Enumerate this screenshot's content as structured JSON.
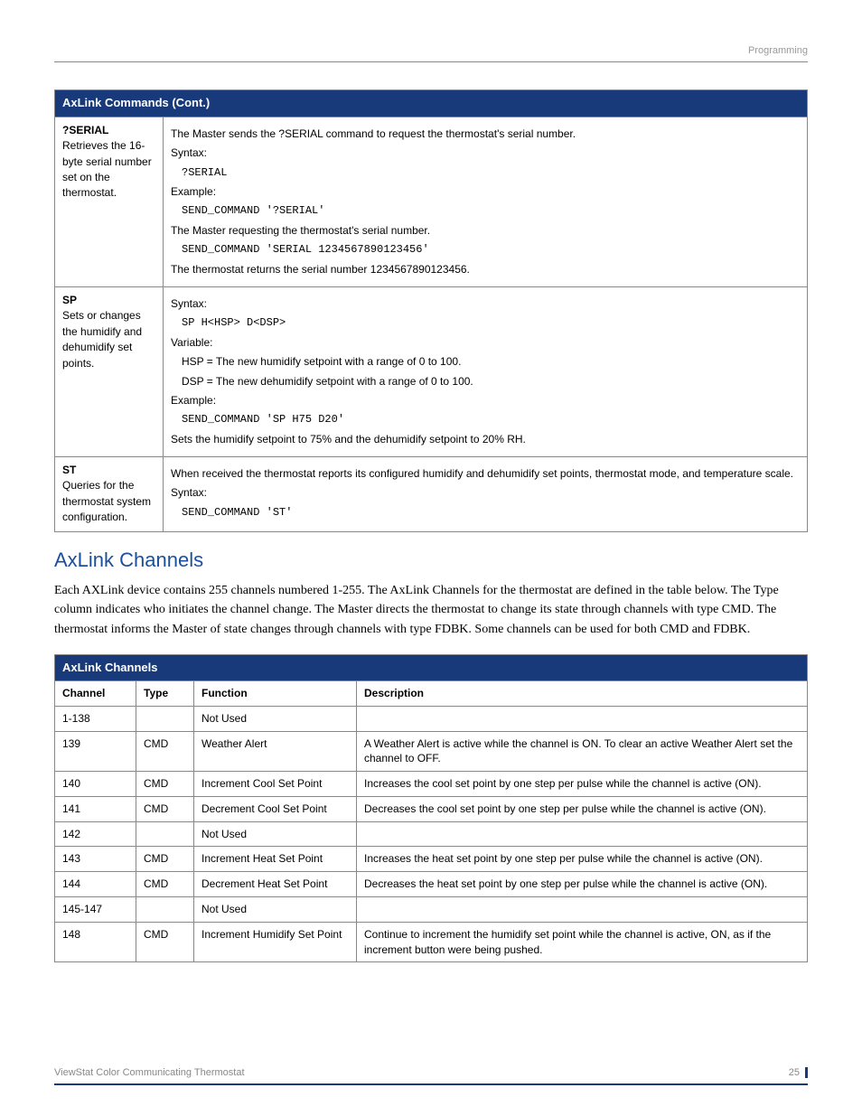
{
  "breadcrumb": "Programming",
  "commands_table": {
    "header": "AxLink Commands (Cont.)",
    "rows": [
      {
        "name": "?SERIAL",
        "desc": "Retrieves the 16-byte serial number set on the thermostat.",
        "details": [
          {
            "type": "text",
            "v": "The Master sends the ?SERIAL command to request the thermostat's serial number."
          },
          {
            "type": "text",
            "v": "Syntax:"
          },
          {
            "type": "code",
            "v": "?SERIAL"
          },
          {
            "type": "text",
            "v": "Example:"
          },
          {
            "type": "code",
            "v": "SEND_COMMAND '?SERIAL'"
          },
          {
            "type": "text",
            "v": "The Master requesting the thermostat's serial number."
          },
          {
            "type": "code",
            "v": "SEND_COMMAND 'SERIAL 1234567890123456'"
          },
          {
            "type": "text",
            "v": "The thermostat returns the serial number 1234567890123456."
          }
        ]
      },
      {
        "name": "SP",
        "desc": "Sets or changes the humidify and dehumidify set points.",
        "details": [
          {
            "type": "text",
            "v": "Syntax:"
          },
          {
            "type": "code",
            "v": "SP H<HSP> D<DSP>"
          },
          {
            "type": "text",
            "v": "Variable:"
          },
          {
            "type": "indent",
            "v": "HSP = The new humidify setpoint with a range of 0 to 100."
          },
          {
            "type": "indent",
            "v": "DSP = The new dehumidify setpoint with a range of 0 to 100."
          },
          {
            "type": "text",
            "v": "Example:"
          },
          {
            "type": "code",
            "v": "SEND_COMMAND 'SP H75 D20'"
          },
          {
            "type": "text",
            "v": "Sets the humidify setpoint to 75% and the dehumidify setpoint to 20% RH."
          }
        ]
      },
      {
        "name": "ST",
        "desc": "Queries for the thermostat system configuration.",
        "details": [
          {
            "type": "text",
            "v": "When received the thermostat reports its configured humidify and dehumidify set points, thermostat mode, and temperature scale."
          },
          {
            "type": "text",
            "v": "Syntax:"
          },
          {
            "type": "code",
            "v": "SEND_COMMAND 'ST'"
          }
        ]
      }
    ]
  },
  "section_title": "AxLink Channels",
  "section_para": "Each AXLink device contains 255 channels numbered 1-255. The AxLink Channels for the thermostat are defined in the table below. The Type column indicates who initiates the channel change.  The Master directs the thermostat to change its state through channels with type CMD.  The thermostat informs the Master of state changes through channels with type FDBK.  Some channels can be used for both CMD and FDBK.",
  "channels_table": {
    "header": "AxLink Channels",
    "cols": {
      "channel": "Channel",
      "type": "Type",
      "function": "Function",
      "description": "Description"
    },
    "rows": [
      {
        "channel": "1-138",
        "type": "",
        "function": "Not Used",
        "description": ""
      },
      {
        "channel": "139",
        "type": "CMD",
        "function": "Weather Alert",
        "description": "A Weather Alert is active while the channel is ON.  To clear an active Weather Alert set the channel to OFF."
      },
      {
        "channel": "140",
        "type": "CMD",
        "function": "Increment Cool Set Point",
        "description": "Increases the cool set point by one step per pulse while the channel is active (ON)."
      },
      {
        "channel": "141",
        "type": "CMD",
        "function": "Decrement Cool Set Point",
        "description": "Decreases the cool set point by one step per pulse while the channel is active (ON)."
      },
      {
        "channel": "142",
        "type": "",
        "function": "Not Used",
        "description": ""
      },
      {
        "channel": "143",
        "type": "CMD",
        "function": "Increment Heat Set Point",
        "description": "Increases the heat set point by one step per pulse while the channel is active (ON)."
      },
      {
        "channel": "144",
        "type": "CMD",
        "function": "Decrement Heat Set Point",
        "description": "Decreases the heat set point by one step per pulse while the channel is active (ON)."
      },
      {
        "channel": "145-147",
        "type": "",
        "function": "Not Used",
        "description": ""
      },
      {
        "channel": "148",
        "type": "CMD",
        "function": "Increment Humidify Set Point",
        "description": "Continue to increment the humidify set point while the channel is active, ON, as if the increment button were being pushed."
      }
    ]
  },
  "footer": {
    "left": "ViewStat Color Communicating Thermostat",
    "page": "25"
  }
}
